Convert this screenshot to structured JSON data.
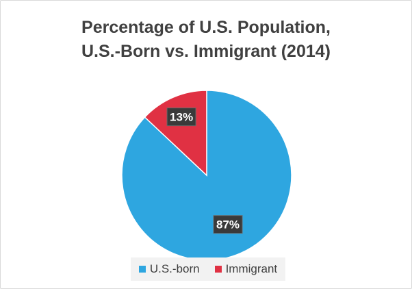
{
  "chart_data": {
    "type": "pie",
    "title_lines": [
      "Percentage of U.S. Population,",
      "U.S.-Born vs. Immigrant (2014)"
    ],
    "categories": [
      "U.S.-born",
      "Immigrant"
    ],
    "values": [
      87,
      13
    ],
    "labels": [
      "87%",
      "13%"
    ],
    "colors": [
      "#2ea6e0",
      "#e03143"
    ],
    "legend_position": "bottom"
  }
}
